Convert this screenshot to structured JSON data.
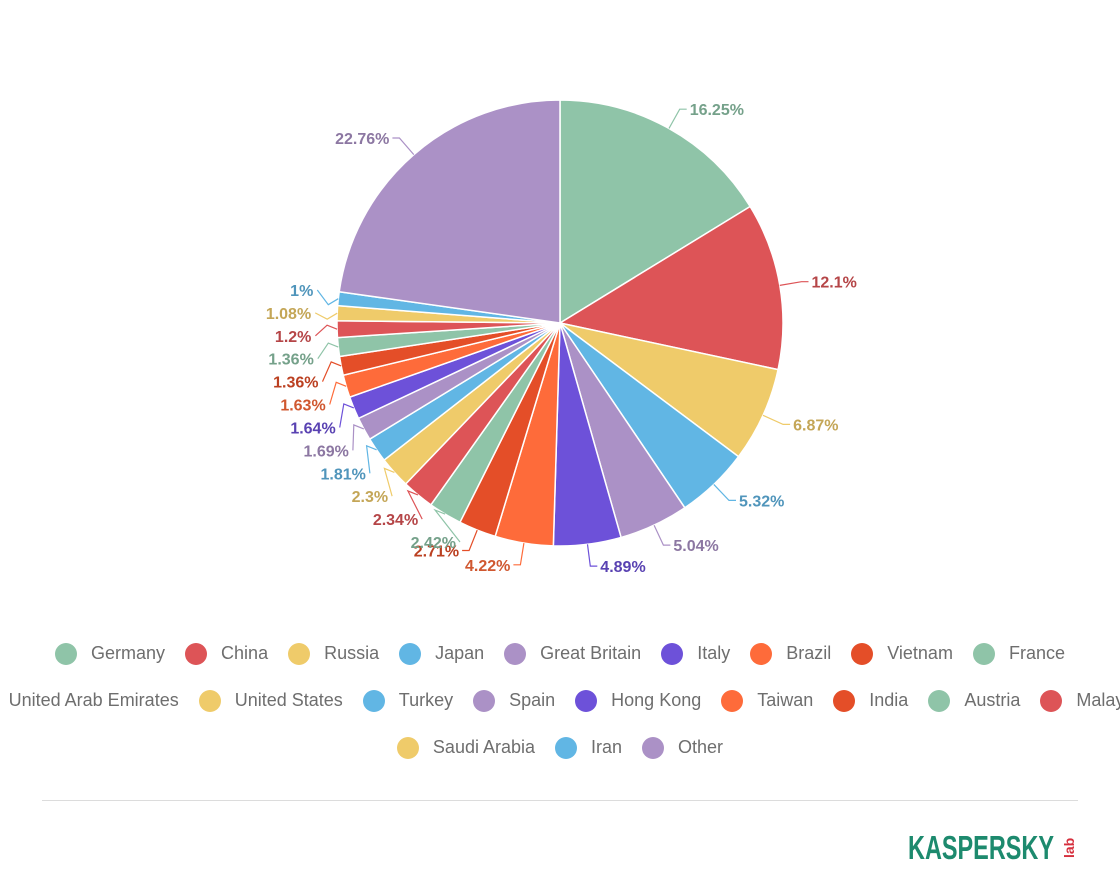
{
  "chart_data": {
    "type": "pie",
    "title": "",
    "start_angle_deg": 0,
    "direction": "clockwise",
    "slices": [
      {
        "name": "Germany",
        "value": 16.25,
        "label": "16.25%",
        "color": "#8fc4a8"
      },
      {
        "name": "China",
        "value": 12.1,
        "label": "12.1%",
        "color": "#dd5457"
      },
      {
        "name": "Russia",
        "value": 6.87,
        "label": "6.87%",
        "color": "#efcb6a"
      },
      {
        "name": "Japan",
        "value": 5.32,
        "label": "5.32%",
        "color": "#61b6e4"
      },
      {
        "name": "Great Britain",
        "value": 5.04,
        "label": "5.04%",
        "color": "#ab91c6"
      },
      {
        "name": "Italy",
        "value": 4.89,
        "label": "4.89%",
        "color": "#6d51d9"
      },
      {
        "name": "Brazil",
        "value": 4.22,
        "label": "4.22%",
        "color": "#fe6b3a"
      },
      {
        "name": "Vietnam",
        "value": 2.71,
        "label": "2.71%",
        "color": "#e44e28"
      },
      {
        "name": "France",
        "value": 2.42,
        "label": "2.42%",
        "color": "#8fc4a8"
      },
      {
        "name": "United Arab Emirates",
        "value": 2.34,
        "label": "2.34%",
        "color": "#dd5457"
      },
      {
        "name": "United States",
        "value": 2.3,
        "label": "2.3%",
        "color": "#efcb6a"
      },
      {
        "name": "Turkey",
        "value": 1.81,
        "label": "1.81%",
        "color": "#61b6e4"
      },
      {
        "name": "Spain",
        "value": 1.69,
        "label": "1.69%",
        "color": "#ab91c6"
      },
      {
        "name": "Hong Kong",
        "value": 1.64,
        "label": "1.64%",
        "color": "#6d51d9"
      },
      {
        "name": "Taiwan",
        "value": 1.63,
        "label": "1.63%",
        "color": "#fe6b3a"
      },
      {
        "name": "India",
        "value": 1.36,
        "label": "1.36%",
        "color": "#e44e28"
      },
      {
        "name": "Austria",
        "value": 1.36,
        "label": "1.36%",
        "color": "#8fc4a8"
      },
      {
        "name": "Malaysia",
        "value": 1.2,
        "label": "1.2%",
        "color": "#dd5457"
      },
      {
        "name": "Saudi Arabia",
        "value": 1.08,
        "label": "1.08%",
        "color": "#efcb6a"
      },
      {
        "name": "Iran",
        "value": 1.0,
        "label": "1%",
        "color": "#61b6e4"
      },
      {
        "name": "Other",
        "value": 22.76,
        "label": "22.76%",
        "color": "#ab91c6"
      }
    ]
  },
  "brand": {
    "name": "KASPERSKY",
    "suffix": "lab",
    "color": "#1d8a6e",
    "accent": "#d6303e"
  }
}
